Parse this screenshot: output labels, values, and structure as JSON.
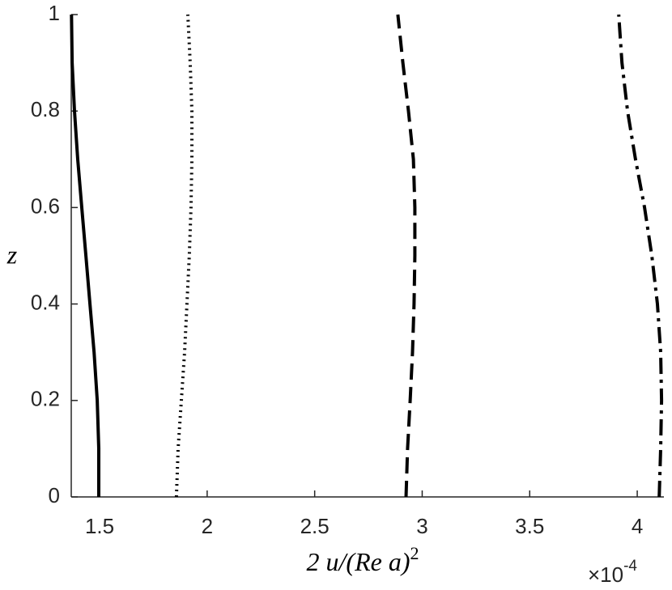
{
  "chart_data": {
    "type": "line",
    "xlabel": "2 u/(Re a)",
    "xlabel_exponent": "2",
    "ylabel": "z",
    "x_multiplier": {
      "base": "×10",
      "exponent": "-4"
    },
    "z": [
      0,
      0.1,
      0.2,
      0.3,
      0.4,
      0.5,
      0.6,
      0.7,
      0.8,
      0.9,
      1
    ],
    "series": [
      {
        "color": "#000000",
        "style": "solid",
        "values": [
          1.496,
          1.496,
          1.489,
          1.474,
          1.455,
          1.436,
          1.417,
          1.398,
          1.383,
          1.372,
          1.369
        ]
      },
      {
        "color": "#000000",
        "style": "dotted",
        "values": [
          1.857,
          1.865,
          1.88,
          1.895,
          1.906,
          1.917,
          1.925,
          1.929,
          1.929,
          1.921,
          1.91
        ]
      },
      {
        "color": "#000000",
        "style": "dashed",
        "values": [
          2.925,
          2.932,
          2.944,
          2.955,
          2.962,
          2.966,
          2.966,
          2.959,
          2.936,
          2.91,
          2.887
        ]
      },
      {
        "color": "#000000",
        "style": "dashdot",
        "values": [
          4.102,
          4.109,
          4.113,
          4.109,
          4.094,
          4.068,
          4.034,
          3.992,
          3.955,
          3.929,
          3.914
        ]
      }
    ],
    "xlim": [
      1.368,
      4.124
    ],
    "xticks": [
      1.5,
      2,
      2.5,
      3,
      3.5,
      4
    ],
    "ylim": [
      0,
      1
    ],
    "yticks": [
      0,
      0.2,
      0.4,
      0.6,
      0.8,
      1
    ],
    "grid": false
  }
}
